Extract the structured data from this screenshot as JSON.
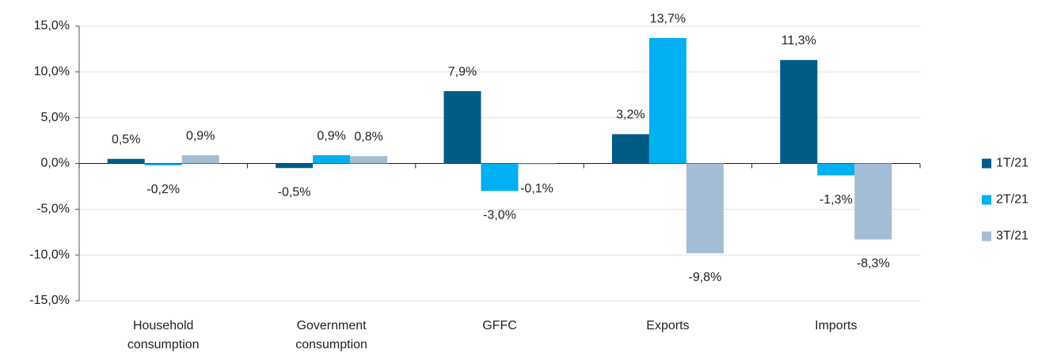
{
  "chart_data": {
    "type": "bar",
    "categories": [
      "Household consumption",
      "Government consumption",
      "GFFC",
      "Exports",
      "Imports"
    ],
    "series": [
      {
        "name": "1T/21",
        "color": "#005b87",
        "values": [
          0.5,
          -0.5,
          7.9,
          3.2,
          11.3
        ],
        "value_labels": [
          "0,5%",
          "-0,5%",
          "7,9%",
          "3,2%",
          "11,3%"
        ]
      },
      {
        "name": "2T/21",
        "color": "#00b0f0",
        "values": [
          -0.2,
          0.9,
          -3.0,
          13.7,
          -1.3
        ],
        "value_labels": [
          "-0,2%",
          "0,9%",
          "-3,0%",
          "13,7%",
          "-1,3%"
        ]
      },
      {
        "name": "3T/21",
        "color": "#a3bdd6",
        "values": [
          0.9,
          0.8,
          -0.1,
          -9.8,
          -8.3
        ],
        "value_labels": [
          "0,9%",
          "0,8%",
          "-0,1%",
          "-9,8%",
          "-8,3%"
        ]
      }
    ],
    "ylim": [
      -15,
      15
    ],
    "yticks": [
      {
        "value": -15,
        "label": "-15,0%"
      },
      {
        "value": -10,
        "label": "-10,0%"
      },
      {
        "value": -5,
        "label": "-5,0%"
      },
      {
        "value": 0,
        "label": "0,0%"
      },
      {
        "value": 5,
        "label": "5,0%"
      },
      {
        "value": 10,
        "label": "10,0%"
      },
      {
        "value": 15,
        "label": "15,0%"
      }
    ],
    "grid": true,
    "legend": "right"
  }
}
